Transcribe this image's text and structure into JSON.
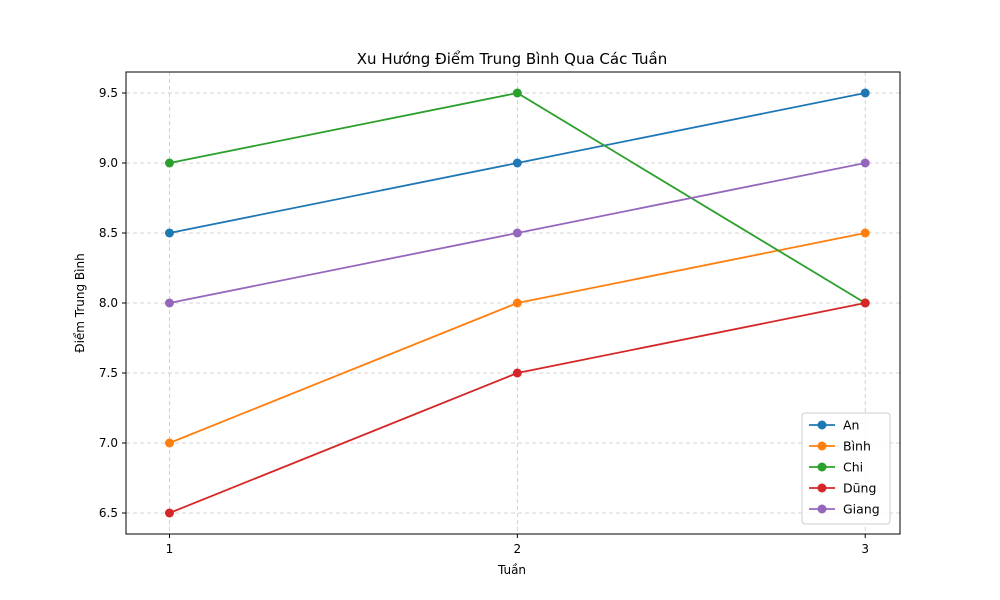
{
  "chart_data": {
    "type": "line",
    "title": "Xu Hướng Điểm Trung Bình Qua Các Tuần",
    "xlabel": "Tuần",
    "ylabel": "Điểm Trung Bình",
    "x": [
      1,
      2,
      3
    ],
    "x_tick_labels": [
      "1",
      "2",
      "3"
    ],
    "xlim": [
      0.875,
      3.1
    ],
    "ylim": [
      6.35,
      9.65
    ],
    "y_ticks": [
      6.5,
      7.0,
      7.5,
      8.0,
      8.5,
      9.0,
      9.5
    ],
    "y_tick_labels": [
      "6.5",
      "7.0",
      "7.5",
      "8.0",
      "8.5",
      "9.0",
      "9.5"
    ],
    "grid": true,
    "legend_position": "bottom-right",
    "series": [
      {
        "name": "An",
        "color": "#1f77b4",
        "values": [
          8.5,
          9.0,
          9.5
        ]
      },
      {
        "name": "Bình",
        "color": "#ff7f0e",
        "values": [
          7.0,
          8.0,
          8.5
        ]
      },
      {
        "name": "Chi",
        "color": "#2ca02c",
        "values": [
          9.0,
          9.5,
          8.0
        ]
      },
      {
        "name": "Dũng",
        "color": "#d62728",
        "values": [
          6.5,
          7.5,
          8.0
        ]
      },
      {
        "name": "Giang",
        "color": "#9467bd",
        "values": [
          8.0,
          8.5,
          9.0
        ]
      }
    ]
  }
}
